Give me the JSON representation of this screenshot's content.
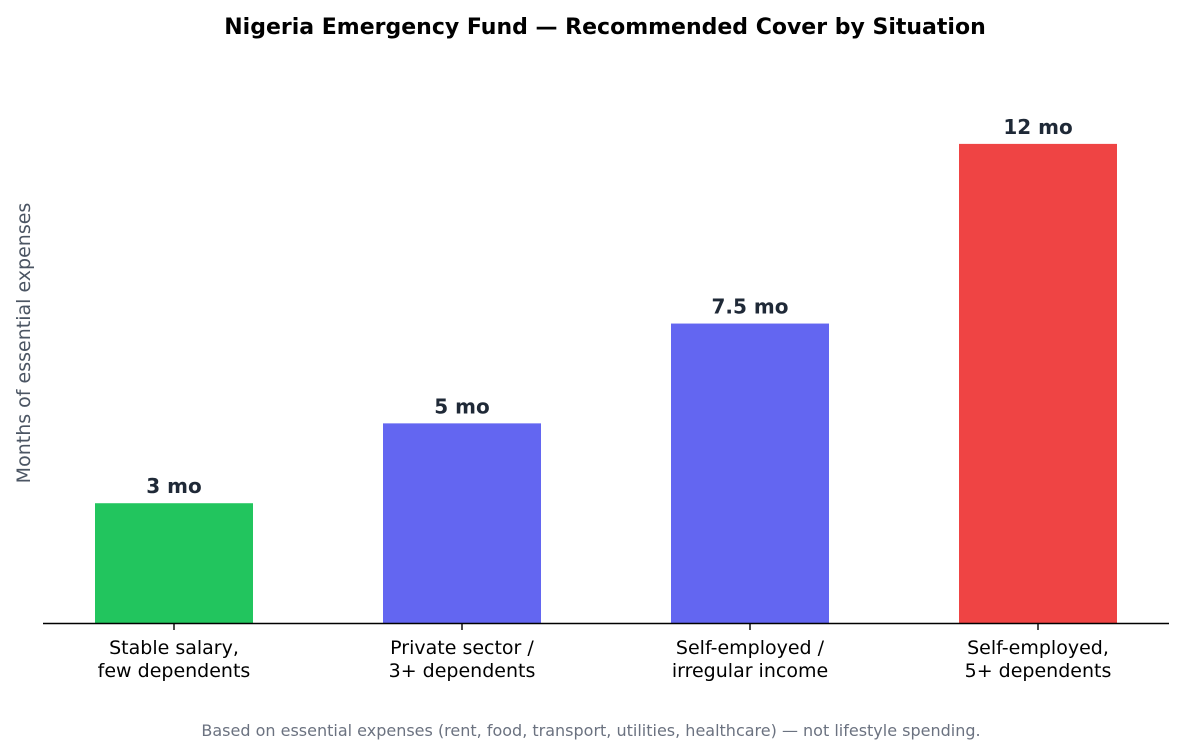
{
  "chart_data": {
    "type": "bar",
    "title": "Nigeria Emergency Fund — Recommended Cover by Situation",
    "xlabel": "",
    "ylabel": "Months of essential expenses",
    "categories": [
      [
        "Stable salary,",
        "few dependents"
      ],
      [
        "Private sector /",
        "3+ dependents"
      ],
      [
        "Self-employed /",
        "irregular income"
      ],
      [
        "Self-employed,",
        "5+ dependents"
      ]
    ],
    "values": [
      3,
      5,
      7.5,
      12
    ],
    "data_labels": [
      "3 mo",
      "5 mo",
      "7.5 mo",
      "12 mo"
    ],
    "colors": [
      "#22c55e",
      "#6366f1",
      "#6366f1",
      "#ef4444"
    ],
    "ylim": [
      0,
      13.5
    ],
    "grid": false,
    "show_y_ticks": false,
    "footnote": "Based on essential expenses (rent, food, transport, utilities, healthcare) — not lifestyle spending."
  }
}
